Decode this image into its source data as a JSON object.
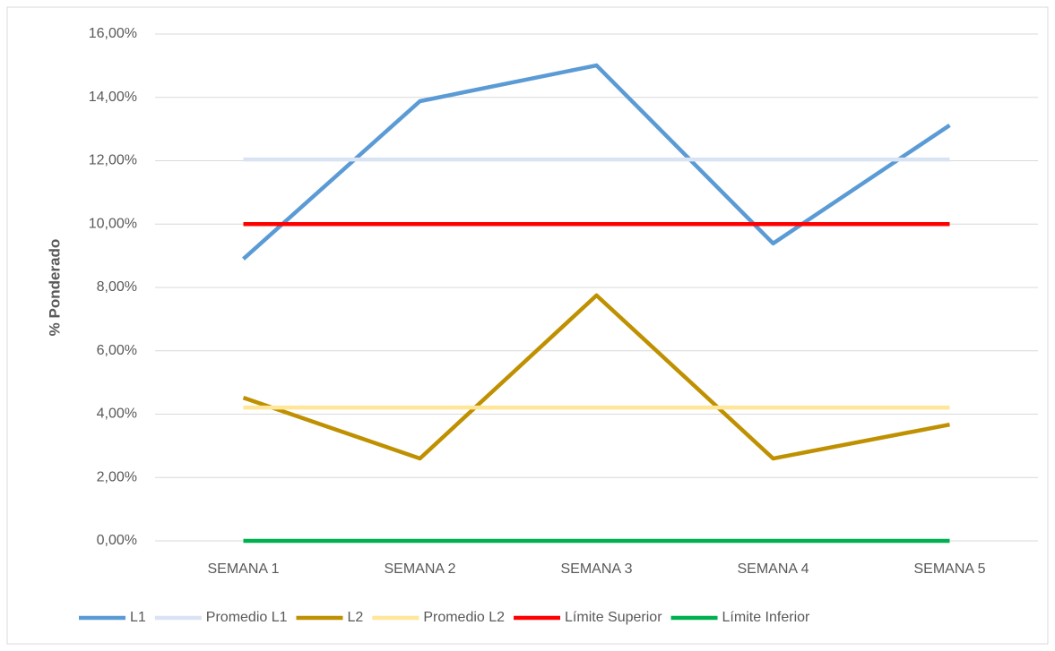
{
  "chart_data": {
    "type": "line",
    "y_label": "% Ponderado",
    "categories": [
      "SEMANA 1",
      "SEMANA 2",
      "SEMANA 3",
      "SEMANA 4",
      "SEMANA 5"
    ],
    "series": [
      {
        "name": "L1",
        "color": "#5b9bd5",
        "values": [
          8.9,
          13.88,
          15.01,
          9.39,
          13.12
        ]
      },
      {
        "name": "Promedio L1",
        "color": "#dae3f3",
        "values": [
          12.04,
          12.04,
          12.04,
          12.04,
          12.04
        ]
      },
      {
        "name": "L2",
        "color": "#bf9000",
        "values": [
          4.52,
          2.6,
          7.75,
          2.6,
          3.67
        ]
      },
      {
        "name": "Promedio L2",
        "color": "#ffe699",
        "values": [
          4.21,
          4.21,
          4.21,
          4.21,
          4.21
        ]
      },
      {
        "name": "Límite Superior",
        "color": "#ff0000",
        "values": [
          10,
          10,
          10,
          10,
          10
        ]
      },
      {
        "name": "Límite Inferior",
        "color": "#00b050",
        "values": [
          0,
          0,
          0,
          0,
          0
        ]
      }
    ],
    "ylim": [
      0,
      16
    ],
    "yticks": [
      {
        "value": 0,
        "label": "0,00%"
      },
      {
        "value": 2,
        "label": "2,00%"
      },
      {
        "value": 4,
        "label": "4,00%"
      },
      {
        "value": 6,
        "label": "6,00%"
      },
      {
        "value": 8,
        "label": "8,00%"
      },
      {
        "value": 10,
        "label": "10,00%"
      },
      {
        "value": 12,
        "label": "12,00%"
      },
      {
        "value": 14,
        "label": "14,00%"
      },
      {
        "value": 16,
        "label": "16,00%"
      }
    ],
    "grid": true,
    "legend": "bottom"
  }
}
